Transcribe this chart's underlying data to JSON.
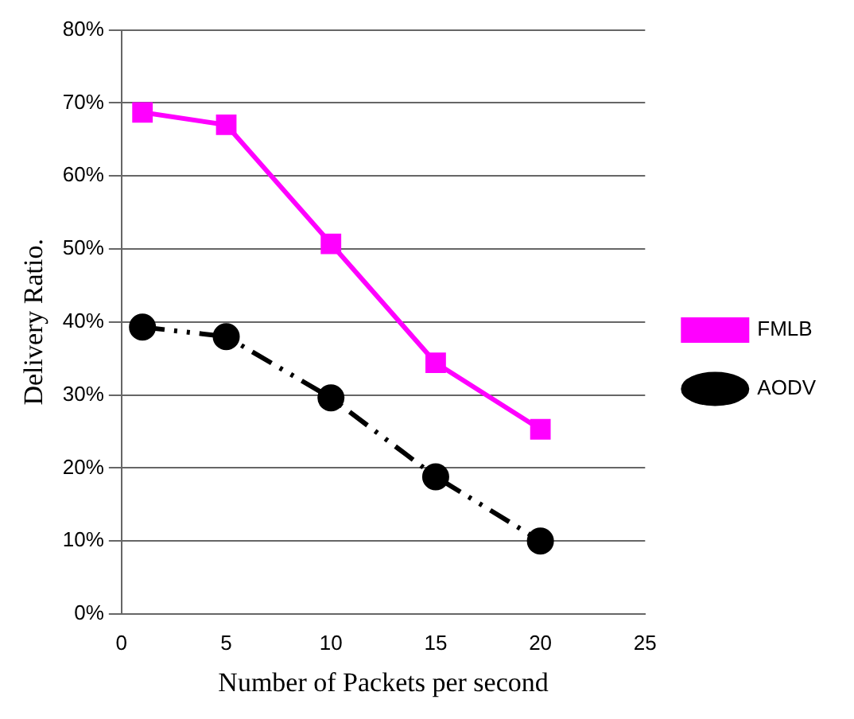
{
  "chart_data": {
    "type": "line",
    "xlabel": "Number of Packets per second",
    "ylabel": "Delivery Ratio.",
    "x": [
      1,
      5,
      10,
      15,
      20
    ],
    "series": [
      {
        "name": "FMLB",
        "color": "#ff00ff",
        "values": [
          68.7,
          67,
          50.7,
          34.4,
          25.3
        ],
        "marker": "square",
        "line_style": "solid"
      },
      {
        "name": "AODV",
        "color": "#000000",
        "values": [
          39.3,
          38,
          29.6,
          18.8,
          10
        ],
        "marker": "circle",
        "line_style": "dashed"
      }
    ],
    "xlim": [
      0,
      25
    ],
    "xticks": [
      0,
      5,
      10,
      15,
      20,
      25
    ],
    "ylim": [
      0,
      80
    ],
    "yticks": [
      {
        "value": 0,
        "label": "0%"
      },
      {
        "value": 10,
        "label": "10%"
      },
      {
        "value": 20,
        "label": "20%"
      },
      {
        "value": 30,
        "label": "30%"
      },
      {
        "value": 40,
        "label": "40%"
      },
      {
        "value": 50,
        "label": "50%"
      },
      {
        "value": 60,
        "label": "60%"
      },
      {
        "value": 70,
        "label": "70%"
      },
      {
        "value": 80,
        "label": "80%"
      }
    ],
    "grid": "y",
    "legend": "right"
  }
}
